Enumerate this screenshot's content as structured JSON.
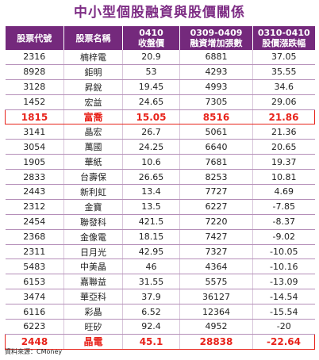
{
  "chart_data": {
    "type": "table",
    "title": "中小型個股融資與股價關係",
    "columns": [
      {
        "line1": "股票代號",
        "line2": ""
      },
      {
        "line1": "股票名稱",
        "line2": ""
      },
      {
        "line1": "0410",
        "line2": "收盤價"
      },
      {
        "line1": "0309-0409",
        "line2": "融資增加張數"
      },
      {
        "line1": "0310-0410",
        "line2": "股價漲跌幅"
      }
    ],
    "rows": [
      {
        "code": "2316",
        "name": "楠梓電",
        "close": "20.9",
        "margin": "6881",
        "change": "37.05",
        "highlight": false
      },
      {
        "code": "8928",
        "name": "鉅明",
        "close": "53",
        "margin": "4293",
        "change": "35.55",
        "highlight": false
      },
      {
        "code": "3128",
        "name": "昇銳",
        "close": "19.45",
        "margin": "4993",
        "change": "34.6",
        "highlight": false
      },
      {
        "code": "1452",
        "name": "宏益",
        "close": "24.65",
        "margin": "7305",
        "change": "29.06",
        "highlight": false
      },
      {
        "code": "1815",
        "name": "富喬",
        "close": "15.05",
        "margin": "8516",
        "change": "21.86",
        "highlight": true
      },
      {
        "code": "3141",
        "name": "晶宏",
        "close": "26.7",
        "margin": "5061",
        "change": "21.36",
        "highlight": false
      },
      {
        "code": "3054",
        "name": "萬國",
        "close": "24.25",
        "margin": "6640",
        "change": "20.65",
        "highlight": false
      },
      {
        "code": "1905",
        "name": "華紙",
        "close": "10.6",
        "margin": "7681",
        "change": "19.37",
        "highlight": false
      },
      {
        "code": "2833",
        "name": "台壽保",
        "close": "26.65",
        "margin": "8253",
        "change": "10.81",
        "highlight": false
      },
      {
        "code": "2443",
        "name": "新利虹",
        "close": "13.4",
        "margin": "7727",
        "change": "4.69",
        "highlight": false
      },
      {
        "code": "2312",
        "name": "金寶",
        "close": "13.5",
        "margin": "6227",
        "change": "-7.85",
        "highlight": false
      },
      {
        "code": "2454",
        "name": "聯發科",
        "close": "421.5",
        "margin": "7220",
        "change": "-8.37",
        "highlight": false
      },
      {
        "code": "2368",
        "name": "金像電",
        "close": "18.15",
        "margin": "7427",
        "change": "-9.02",
        "highlight": false
      },
      {
        "code": "2311",
        "name": "日月光",
        "close": "42.95",
        "margin": "7327",
        "change": "-10.05",
        "highlight": false
      },
      {
        "code": "5483",
        "name": "中美晶",
        "close": "46",
        "margin": "4364",
        "change": "-10.16",
        "highlight": false
      },
      {
        "code": "6153",
        "name": "嘉聯益",
        "close": "31.55",
        "margin": "5575",
        "change": "-13.09",
        "highlight": false
      },
      {
        "code": "3474",
        "name": "華亞科",
        "close": "37.9",
        "margin": "36127",
        "change": "-14.54",
        "highlight": false
      },
      {
        "code": "6116",
        "name": "彩晶",
        "close": "6.52",
        "margin": "12364",
        "change": "-15.54",
        "highlight": false
      },
      {
        "code": "6223",
        "name": "旺矽",
        "close": "92.4",
        "margin": "4952",
        "change": "-20",
        "highlight": false
      },
      {
        "code": "2448",
        "name": "晶電",
        "close": "45.1",
        "margin": "28838",
        "change": "-22.64",
        "highlight": true
      }
    ],
    "source": "資料來源：CMoney",
    "colors": {
      "header_bg": "#74297c",
      "title": "#7d2c84",
      "highlight": "#e8231b"
    }
  }
}
